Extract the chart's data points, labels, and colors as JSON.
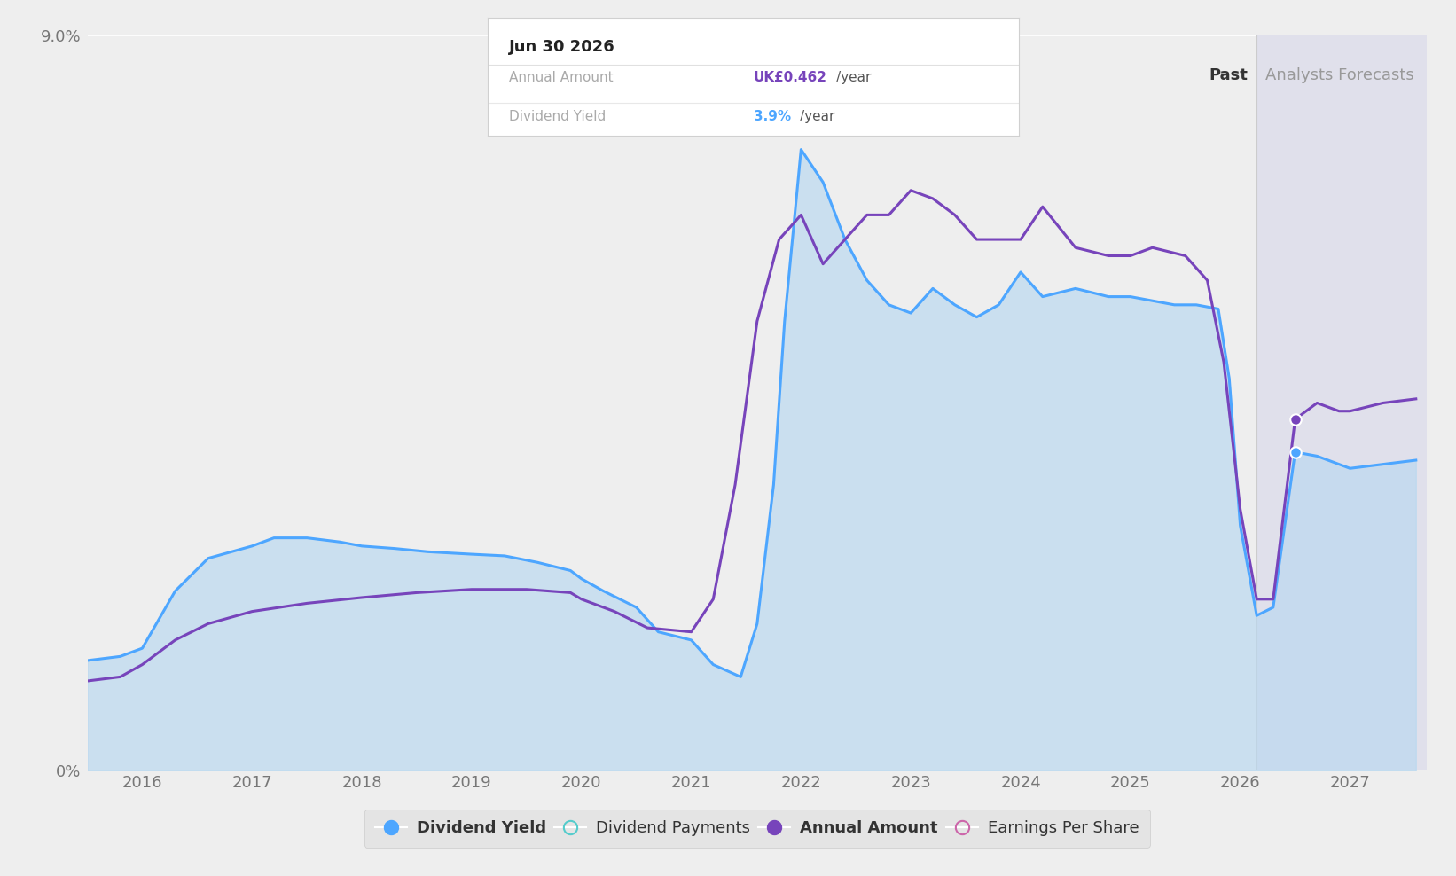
{
  "background_color": "#eeeeee",
  "plot_bg_color": "#eeeeee",
  "forecast_bg_color": "#e0e0eb",
  "area_color": "#b8d8f0",
  "area_alpha": 0.65,
  "blue_line_color": "#4da6ff",
  "purple_line_color": "#7744bb",
  "grid_color": "#ffffff",
  "past_label": "Past",
  "forecast_label": "Analysts Forecasts",
  "divider_x": 2026.15,
  "ylim": [
    0,
    9.0
  ],
  "xlim": [
    2015.5,
    2027.7
  ],
  "yticks": [
    0,
    9.0
  ],
  "ytick_labels": [
    "0%",
    "9.0%"
  ],
  "xticks": [
    2016,
    2017,
    2018,
    2019,
    2020,
    2021,
    2022,
    2023,
    2024,
    2025,
    2026,
    2027
  ],
  "tooltip": {
    "title": "Jun 30 2026",
    "row1_label": "Annual Amount",
    "row1_value": "UK£0.462",
    "row1_suffix": "/year",
    "row1_color": "#7744bb",
    "row2_label": "Dividend Yield",
    "row2_value": "3.9%",
    "row2_suffix": "/year",
    "row2_color": "#4da6ff"
  },
  "dividend_yield_x": [
    2015.5,
    2015.8,
    2016.0,
    2016.3,
    2016.6,
    2017.0,
    2017.2,
    2017.5,
    2017.8,
    2018.0,
    2018.3,
    2018.6,
    2019.0,
    2019.3,
    2019.6,
    2019.9,
    2020.0,
    2020.2,
    2020.5,
    2020.7,
    2021.0,
    2021.2,
    2021.45,
    2021.6,
    2021.75,
    2021.85,
    2022.0,
    2022.2,
    2022.4,
    2022.6,
    2022.8,
    2023.0,
    2023.2,
    2023.4,
    2023.6,
    2023.8,
    2024.0,
    2024.2,
    2024.5,
    2024.8,
    2025.0,
    2025.2,
    2025.4,
    2025.6,
    2025.8,
    2025.9,
    2026.0,
    2026.15,
    2026.3,
    2026.5,
    2026.7,
    2026.9,
    2027.0,
    2027.3,
    2027.6
  ],
  "dividend_yield_y": [
    1.35,
    1.4,
    1.5,
    2.2,
    2.6,
    2.75,
    2.85,
    2.85,
    2.8,
    2.75,
    2.72,
    2.68,
    2.65,
    2.63,
    2.55,
    2.45,
    2.35,
    2.2,
    2.0,
    1.7,
    1.6,
    1.3,
    1.15,
    1.8,
    3.5,
    5.5,
    7.6,
    7.2,
    6.5,
    6.0,
    5.7,
    5.6,
    5.9,
    5.7,
    5.55,
    5.7,
    6.1,
    5.8,
    5.9,
    5.8,
    5.8,
    5.75,
    5.7,
    5.7,
    5.65,
    4.8,
    3.0,
    1.9,
    2.0,
    3.9,
    3.85,
    3.75,
    3.7,
    3.75,
    3.8
  ],
  "annual_amount_x": [
    2015.5,
    2015.8,
    2016.0,
    2016.3,
    2016.6,
    2017.0,
    2017.5,
    2018.0,
    2018.5,
    2019.0,
    2019.5,
    2019.9,
    2020.0,
    2020.3,
    2020.6,
    2021.0,
    2021.2,
    2021.4,
    2021.6,
    2021.8,
    2022.0,
    2022.2,
    2022.4,
    2022.6,
    2022.8,
    2023.0,
    2023.2,
    2023.4,
    2023.6,
    2023.9,
    2024.0,
    2024.2,
    2024.5,
    2024.8,
    2025.0,
    2025.2,
    2025.5,
    2025.7,
    2025.85,
    2026.0,
    2026.15,
    2026.3,
    2026.5,
    2026.7,
    2026.9,
    2027.0,
    2027.3,
    2027.6
  ],
  "annual_amount_y": [
    1.1,
    1.15,
    1.3,
    1.6,
    1.8,
    1.95,
    2.05,
    2.12,
    2.18,
    2.22,
    2.22,
    2.18,
    2.1,
    1.95,
    1.75,
    1.7,
    2.1,
    3.5,
    5.5,
    6.5,
    6.8,
    6.2,
    6.5,
    6.8,
    6.8,
    7.1,
    7.0,
    6.8,
    6.5,
    6.5,
    6.5,
    6.9,
    6.4,
    6.3,
    6.3,
    6.4,
    6.3,
    6.0,
    5.0,
    3.2,
    2.1,
    2.1,
    4.3,
    4.5,
    4.4,
    4.4,
    4.5,
    4.55
  ],
  "tooltip_marker_x_blue": 2026.5,
  "tooltip_marker_y_blue": 3.9,
  "tooltip_marker_x_purple": 2026.5,
  "tooltip_marker_y_purple": 4.3,
  "legend_items": [
    {
      "label": "Dividend Yield",
      "color": "#4da6ff",
      "filled": true
    },
    {
      "label": "Dividend Payments",
      "color": "#55cccc",
      "filled": false
    },
    {
      "label": "Annual Amount",
      "color": "#7744bb",
      "filled": true
    },
    {
      "label": "Earnings Per Share",
      "color": "#cc66aa",
      "filled": false
    }
  ]
}
